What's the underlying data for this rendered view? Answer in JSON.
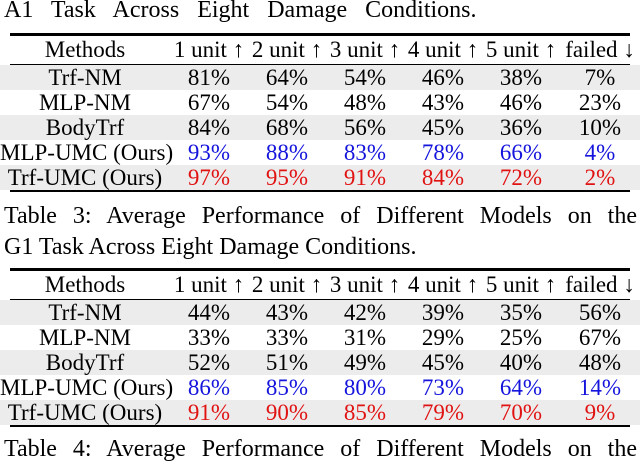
{
  "colors": {
    "ours_mlp_blue": "#1414dd",
    "ours_trf_red": "#e11212",
    "row_shade": "#ececec",
    "rule_black": "#000000"
  },
  "captions": {
    "table2_fragment": "A1 Task Across Eight Damage Conditions.",
    "table3_line1": "Table 3: Average Performance of Different Models on the",
    "table3_line2": "G1 Task Across Eight Damage Conditions.",
    "table4_fragment": "Table 4: Average Performance of Different Models on the"
  },
  "tables": [
    {
      "name": "a1-task-results",
      "columns": [
        "Methods",
        "1 unit ↑",
        "2 unit ↑",
        "3 unit ↑",
        "4 unit ↑",
        "5 unit ↑",
        "failed ↓"
      ],
      "rows": [
        {
          "method": "Trf-NM",
          "values": [
            "81%",
            "64%",
            "54%",
            "46%",
            "38%",
            "7%"
          ],
          "color": null
        },
        {
          "method": "MLP-NM",
          "values": [
            "67%",
            "54%",
            "48%",
            "43%",
            "46%",
            "23%"
          ],
          "color": null
        },
        {
          "method": "BodyTrf",
          "values": [
            "84%",
            "68%",
            "56%",
            "45%",
            "36%",
            "10%"
          ],
          "color": null
        },
        {
          "method": "MLP-UMC (Ours)",
          "values": [
            "93%",
            "88%",
            "83%",
            "78%",
            "66%",
            "4%"
          ],
          "color": "ours_mlp_blue"
        },
        {
          "method": "Trf-UMC (Ours)",
          "values": [
            "97%",
            "95%",
            "91%",
            "84%",
            "72%",
            "2%"
          ],
          "color": "ours_trf_red"
        }
      ]
    },
    {
      "name": "g1-task-results",
      "columns": [
        "Methods",
        "1 unit ↑",
        "2 unit ↑",
        "3 unit ↑",
        "4 unit ↑",
        "5 unit ↑",
        "failed ↓"
      ],
      "rows": [
        {
          "method": "Trf-NM",
          "values": [
            "44%",
            "43%",
            "42%",
            "39%",
            "35%",
            "56%"
          ],
          "color": null
        },
        {
          "method": "MLP-NM",
          "values": [
            "33%",
            "33%",
            "31%",
            "29%",
            "25%",
            "67%"
          ],
          "color": null
        },
        {
          "method": "BodyTrf",
          "values": [
            "52%",
            "51%",
            "49%",
            "45%",
            "40%",
            "48%"
          ],
          "color": null
        },
        {
          "method": "MLP-UMC (Ours)",
          "values": [
            "86%",
            "85%",
            "80%",
            "73%",
            "64%",
            "14%"
          ],
          "color": "ours_mlp_blue"
        },
        {
          "method": "Trf-UMC (Ours)",
          "values": [
            "91%",
            "90%",
            "85%",
            "79%",
            "70%",
            "9%"
          ],
          "color": "ours_trf_red"
        }
      ]
    }
  ]
}
